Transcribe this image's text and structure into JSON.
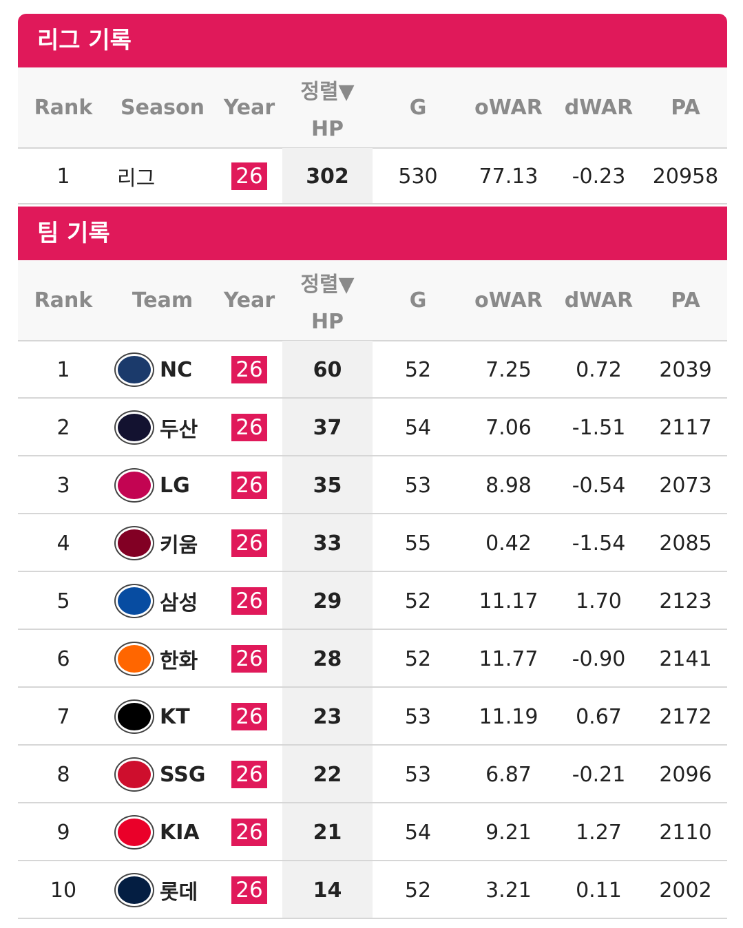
{
  "league": {
    "title": "리그 기록",
    "header": [
      "Rank",
      "Season",
      "Year",
      {
        "sort": "정렬▼",
        "label": "HP"
      },
      "G",
      "oWAR",
      "dWAR",
      "PA"
    ],
    "rows": [
      [
        "1",
        "리그",
        "26",
        "302",
        "530",
        "77.13",
        "-0.23",
        "20958"
      ]
    ]
  },
  "team": {
    "title": "팀 기록",
    "header": [
      "Rank",
      "Team",
      "Year",
      {
        "sort": "정렬▼",
        "label": "HP"
      },
      "G",
      "oWAR",
      "dWAR",
      "PA"
    ],
    "rows": [
      [
        "1",
        "NC",
        "26",
        "60",
        "52",
        "7.25",
        "0.72",
        "2039"
      ],
      [
        "2",
        "두산",
        "26",
        "37",
        "54",
        "7.06",
        "-1.51",
        "2117"
      ],
      [
        "3",
        "LG",
        "26",
        "35",
        "53",
        "8.98",
        "-0.54",
        "2073"
      ],
      [
        "4",
        "키움",
        "26",
        "33",
        "55",
        "0.42",
        "-1.54",
        "2085"
      ],
      [
        "5",
        "삼성",
        "26",
        "29",
        "52",
        "11.17",
        "1.70",
        "2123"
      ],
      [
        "6",
        "한화",
        "26",
        "28",
        "52",
        "11.77",
        "-0.90",
        "2141"
      ],
      [
        "7",
        "KT",
        "26",
        "23",
        "53",
        "11.19",
        "0.67",
        "2172"
      ],
      [
        "8",
        "SSG",
        "26",
        "22",
        "53",
        "6.87",
        "-0.21",
        "2096"
      ],
      [
        "9",
        "KIA",
        "26",
        "21",
        "54",
        "9.21",
        "1.27",
        "2110"
      ],
      [
        "10",
        "롯데",
        "26",
        "14",
        "52",
        "3.21",
        "0.11",
        "2002"
      ]
    ]
  }
}
